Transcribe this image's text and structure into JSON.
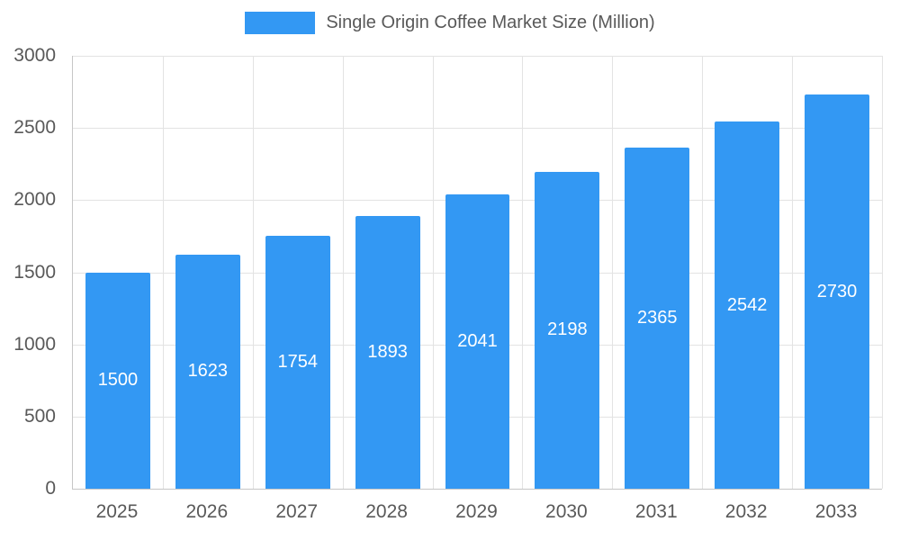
{
  "legend": {
    "label": "Single Origin Coffee Market Size (Million)"
  },
  "chart_data": {
    "type": "bar",
    "title": "Single Origin Coffee Market Size (Million)",
    "categories": [
      "2025",
      "2026",
      "2027",
      "2028",
      "2029",
      "2030",
      "2031",
      "2032",
      "2033"
    ],
    "values": [
      1500,
      1623,
      1754,
      1893,
      2041,
      2198,
      2365,
      2542,
      2730
    ],
    "xlabel": "",
    "ylabel": "",
    "ylim": [
      0,
      3000
    ],
    "yticks": [
      0,
      500,
      1000,
      1500,
      2000,
      2500,
      3000
    ],
    "grid": true,
    "legend_position": "top",
    "bar_color": "#3398f3",
    "value_label_color": "#ffffff",
    "axis_text_color": "#595959",
    "gridline_color": "#e3e3e3",
    "axis_line_color": "#c6c6c6"
  }
}
